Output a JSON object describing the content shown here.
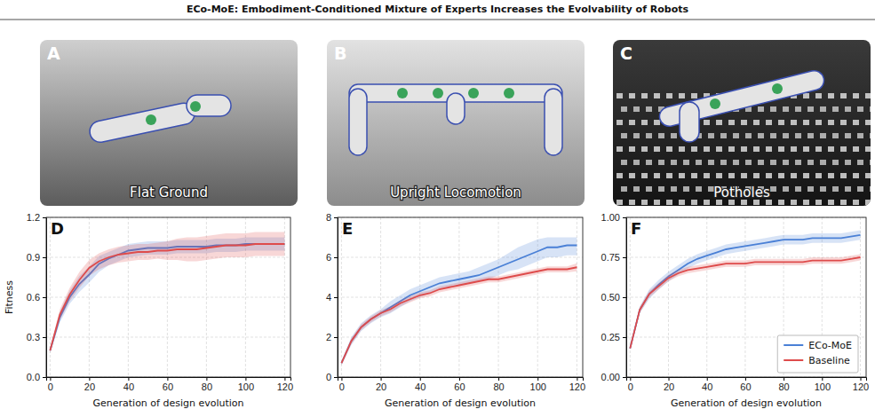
{
  "title": "ECo-MoE: Embodiment-Conditioned Mixture of Experts Increases the Evolvability of Robots",
  "images": [
    {
      "letter": "A",
      "caption": "Flat Ground"
    },
    {
      "letter": "B",
      "caption": "Upright Locomotion"
    },
    {
      "letter": "C",
      "caption": "Potholes"
    }
  ],
  "chart_data": [
    {
      "type": "line",
      "panel": "D",
      "x_label": "Generation of design evolution",
      "y_label": "Fitness",
      "x": [
        0,
        5,
        10,
        15,
        20,
        25,
        30,
        35,
        40,
        45,
        50,
        55,
        60,
        65,
        70,
        75,
        80,
        85,
        90,
        95,
        100,
        105,
        110,
        115,
        120
      ],
      "xlim": [
        -2,
        123
      ],
      "xticks": [
        0,
        20,
        40,
        60,
        80,
        100,
        120
      ],
      "ylim": [
        0,
        1.2
      ],
      "yticks": [
        {
          "value": 0,
          "label": "0.0"
        },
        0.3,
        0.6,
        0.9,
        1.2
      ],
      "grid": true,
      "series": [
        {
          "name": "ECo-MoE",
          "color": "#4a80d6",
          "values": [
            0.2,
            0.45,
            0.6,
            0.7,
            0.77,
            0.85,
            0.89,
            0.92,
            0.95,
            0.96,
            0.97,
            0.97,
            0.97,
            0.98,
            0.98,
            0.98,
            0.98,
            0.99,
            0.99,
            0.99,
            1.0,
            1.0,
            1.0,
            1.0,
            1.0
          ],
          "lower": [
            0.18,
            0.41,
            0.55,
            0.64,
            0.71,
            0.79,
            0.84,
            0.87,
            0.9,
            0.91,
            0.92,
            0.92,
            0.92,
            0.93,
            0.93,
            0.93,
            0.93,
            0.94,
            0.94,
            0.94,
            0.95,
            0.95,
            0.95,
            0.95,
            0.95
          ],
          "upper": [
            0.22,
            0.49,
            0.65,
            0.76,
            0.83,
            0.91,
            0.94,
            0.97,
            1.0,
            1.01,
            1.02,
            1.02,
            1.02,
            1.03,
            1.03,
            1.03,
            1.03,
            1.04,
            1.04,
            1.04,
            1.05,
            1.05,
            1.05,
            1.05,
            1.05
          ]
        },
        {
          "name": "Baseline",
          "color": "#de4b4b",
          "values": [
            0.2,
            0.47,
            0.62,
            0.73,
            0.82,
            0.87,
            0.9,
            0.92,
            0.93,
            0.94,
            0.94,
            0.95,
            0.95,
            0.96,
            0.96,
            0.96,
            0.97,
            0.98,
            0.99,
            0.99,
            0.99,
            1.0,
            1.0,
            1.0,
            1.0
          ],
          "lower": [
            0.18,
            0.43,
            0.57,
            0.67,
            0.76,
            0.81,
            0.84,
            0.86,
            0.87,
            0.88,
            0.88,
            0.89,
            0.88,
            0.88,
            0.87,
            0.87,
            0.88,
            0.89,
            0.9,
            0.9,
            0.9,
            0.91,
            0.91,
            0.91,
            0.91
          ],
          "upper": [
            0.22,
            0.51,
            0.67,
            0.79,
            0.88,
            0.93,
            0.96,
            0.98,
            0.99,
            1.0,
            1.0,
            1.01,
            1.02,
            1.04,
            1.05,
            1.05,
            1.06,
            1.07,
            1.08,
            1.08,
            1.08,
            1.09,
            1.09,
            1.09,
            1.09
          ]
        }
      ]
    },
    {
      "type": "line",
      "panel": "E",
      "x_label": "Generation of design evolution",
      "x": [
        0,
        5,
        10,
        15,
        20,
        25,
        30,
        35,
        40,
        45,
        50,
        55,
        60,
        65,
        70,
        75,
        80,
        85,
        90,
        95,
        100,
        105,
        110,
        115,
        120
      ],
      "xlim": [
        -2,
        123
      ],
      "xticks": [
        0,
        20,
        40,
        60,
        80,
        100,
        120
      ],
      "ylim": [
        0,
        8
      ],
      "yticks": [
        0,
        2,
        4,
        6,
        8
      ],
      "grid": true,
      "series": [
        {
          "name": "ECo-MoE",
          "color": "#4a80d6",
          "values": [
            0.7,
            1.8,
            2.5,
            2.9,
            3.2,
            3.5,
            3.8,
            4.1,
            4.3,
            4.5,
            4.7,
            4.8,
            4.9,
            5.0,
            5.1,
            5.3,
            5.5,
            5.7,
            5.9,
            6.1,
            6.3,
            6.5,
            6.5,
            6.6,
            6.6
          ],
          "lower": [
            0.6,
            1.6,
            2.3,
            2.7,
            3.0,
            3.2,
            3.5,
            3.8,
            4.0,
            4.2,
            4.4,
            4.5,
            4.6,
            4.7,
            4.8,
            4.9,
            5.1,
            5.3,
            5.4,
            5.6,
            5.8,
            6.0,
            6.0,
            6.1,
            6.1
          ],
          "upper": [
            0.8,
            2.0,
            2.7,
            3.1,
            3.4,
            3.8,
            4.1,
            4.4,
            4.6,
            4.8,
            5.0,
            5.1,
            5.2,
            5.3,
            5.5,
            5.7,
            5.9,
            6.2,
            6.5,
            6.7,
            6.9,
            7.0,
            7.0,
            7.0,
            7.0
          ]
        },
        {
          "name": "Baseline",
          "color": "#de4b4b",
          "values": [
            0.7,
            1.8,
            2.5,
            2.9,
            3.2,
            3.4,
            3.7,
            3.9,
            4.1,
            4.2,
            4.4,
            4.5,
            4.6,
            4.7,
            4.8,
            4.9,
            4.9,
            5.0,
            5.1,
            5.2,
            5.3,
            5.4,
            5.4,
            5.4,
            5.5
          ],
          "lower": [
            0.6,
            1.65,
            2.35,
            2.75,
            3.05,
            3.25,
            3.55,
            3.75,
            3.95,
            4.05,
            4.25,
            4.35,
            4.45,
            4.55,
            4.65,
            4.75,
            4.75,
            4.85,
            4.95,
            5.05,
            5.15,
            5.25,
            5.25,
            5.25,
            5.3
          ],
          "upper": [
            0.8,
            1.95,
            2.65,
            3.05,
            3.35,
            3.55,
            3.85,
            4.05,
            4.25,
            4.35,
            4.55,
            4.65,
            4.75,
            4.85,
            4.95,
            5.05,
            5.05,
            5.15,
            5.25,
            5.35,
            5.45,
            5.55,
            5.55,
            5.55,
            5.7
          ]
        }
      ]
    },
    {
      "type": "line",
      "panel": "F",
      "x_label": "Generation of design evolution",
      "x": [
        0,
        5,
        10,
        15,
        20,
        25,
        30,
        35,
        40,
        45,
        50,
        55,
        60,
        65,
        70,
        75,
        80,
        85,
        90,
        95,
        100,
        105,
        110,
        115,
        120
      ],
      "xlim": [
        -2,
        123
      ],
      "xticks": [
        0,
        20,
        40,
        60,
        80,
        100,
        120
      ],
      "ylim": [
        0,
        1
      ],
      "yticks": [
        {
          "value": 0,
          "label": "0.00"
        },
        {
          "value": 0.25,
          "label": "0.25"
        },
        {
          "value": 0.5,
          "label": "0.50"
        },
        {
          "value": 0.75,
          "label": "0.75"
        },
        {
          "value": 1,
          "label": "1.00"
        }
      ],
      "grid": true,
      "legend": "lower right",
      "series": [
        {
          "name": "ECo-MoE",
          "color": "#4a80d6",
          "values": [
            0.18,
            0.42,
            0.52,
            0.58,
            0.63,
            0.67,
            0.71,
            0.74,
            0.76,
            0.78,
            0.8,
            0.81,
            0.82,
            0.83,
            0.84,
            0.85,
            0.86,
            0.86,
            0.86,
            0.87,
            0.87,
            0.87,
            0.87,
            0.88,
            0.89
          ],
          "lower": [
            0.17,
            0.4,
            0.49,
            0.55,
            0.6,
            0.64,
            0.68,
            0.71,
            0.73,
            0.75,
            0.77,
            0.78,
            0.79,
            0.8,
            0.81,
            0.82,
            0.83,
            0.83,
            0.83,
            0.84,
            0.84,
            0.84,
            0.84,
            0.85,
            0.86
          ],
          "upper": [
            0.19,
            0.44,
            0.55,
            0.61,
            0.66,
            0.7,
            0.74,
            0.77,
            0.79,
            0.81,
            0.83,
            0.84,
            0.85,
            0.86,
            0.87,
            0.88,
            0.89,
            0.89,
            0.89,
            0.9,
            0.9,
            0.9,
            0.9,
            0.91,
            0.92
          ]
        },
        {
          "name": "Baseline",
          "color": "#de4b4b",
          "values": [
            0.18,
            0.42,
            0.52,
            0.57,
            0.62,
            0.65,
            0.67,
            0.68,
            0.69,
            0.7,
            0.71,
            0.71,
            0.71,
            0.72,
            0.72,
            0.72,
            0.72,
            0.72,
            0.72,
            0.73,
            0.73,
            0.73,
            0.73,
            0.74,
            0.75
          ],
          "lower": [
            0.17,
            0.4,
            0.5,
            0.55,
            0.6,
            0.63,
            0.65,
            0.66,
            0.67,
            0.68,
            0.69,
            0.69,
            0.69,
            0.7,
            0.7,
            0.7,
            0.7,
            0.7,
            0.7,
            0.71,
            0.71,
            0.71,
            0.71,
            0.72,
            0.73
          ],
          "upper": [
            0.19,
            0.44,
            0.54,
            0.59,
            0.64,
            0.67,
            0.69,
            0.7,
            0.71,
            0.72,
            0.73,
            0.73,
            0.73,
            0.74,
            0.74,
            0.74,
            0.74,
            0.74,
            0.74,
            0.75,
            0.75,
            0.75,
            0.75,
            0.76,
            0.77
          ]
        }
      ]
    }
  ]
}
